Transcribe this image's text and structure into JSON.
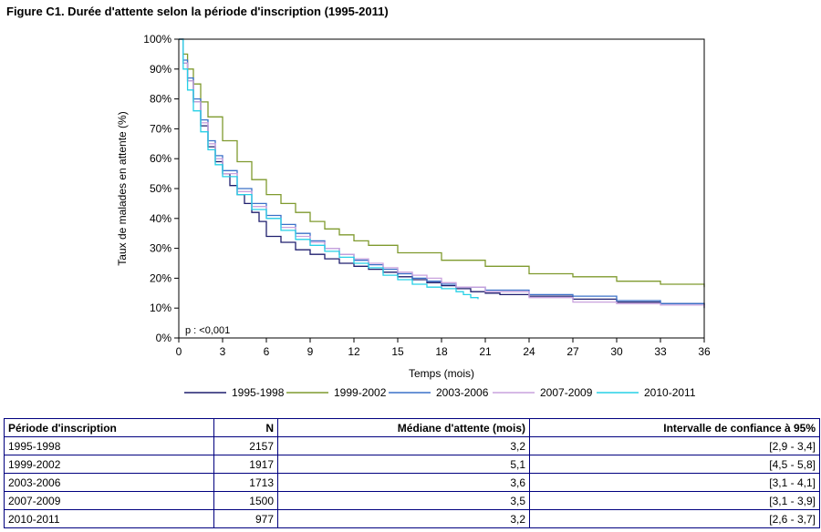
{
  "figure": {
    "title": "Figure C1. Durée d'attente selon la période d'inscription (1995-2011)"
  },
  "chart_data": {
    "type": "line",
    "xlabel": "Temps (mois)",
    "ylabel": "Taux de malades en attente (%)",
    "xlim": [
      0,
      36
    ],
    "ylim": [
      0,
      100
    ],
    "xticks": [
      "0",
      "3",
      "6",
      "9",
      "12",
      "15",
      "18",
      "21",
      "24",
      "27",
      "30",
      "33",
      "36"
    ],
    "yticks": [
      "0%",
      "10%",
      "20%",
      "30%",
      "40%",
      "50%",
      "60%",
      "70%",
      "80%",
      "90%",
      "100%"
    ],
    "annotation": "p : <0,001",
    "grid": false,
    "legend_position": "bottom",
    "series": [
      {
        "name": "1995-1998",
        "color": "#1f1f6e",
        "x": [
          0,
          0.3,
          0.6,
          1,
          1.5,
          2,
          2.5,
          3,
          3.5,
          4,
          4.5,
          5,
          5.5,
          6,
          7,
          8,
          9,
          10,
          11,
          12,
          13,
          14,
          15,
          16,
          17,
          18,
          19,
          20,
          21,
          22,
          24,
          27,
          30,
          33,
          36
        ],
        "y": [
          100,
          92,
          86,
          79,
          71,
          64,
          59,
          55,
          51,
          48,
          45,
          42,
          39,
          34,
          32,
          29.5,
          28,
          26.5,
          25,
          24,
          23,
          22,
          20.5,
          19.5,
          18.5,
          17.5,
          16.5,
          15.5,
          15,
          14.5,
          14,
          13,
          12,
          11.5,
          10
        ]
      },
      {
        "name": "1999-2002",
        "color": "#7f9a2e",
        "x": [
          0,
          0.3,
          0.6,
          1,
          1.5,
          2,
          3,
          4,
          5,
          6,
          7,
          8,
          9,
          10,
          11,
          12,
          13,
          15,
          18,
          21,
          24,
          27,
          30,
          33,
          36
        ],
        "y": [
          100,
          95,
          90,
          85,
          79,
          74,
          66,
          59,
          53,
          48,
          45,
          42,
          39,
          36.5,
          34.5,
          32.5,
          31,
          28.5,
          26,
          24,
          21.5,
          20.5,
          19,
          18,
          17
        ]
      },
      {
        "name": "2003-2006",
        "color": "#3a70c8",
        "x": [
          0,
          0.3,
          0.6,
          1,
          1.5,
          2,
          2.5,
          3,
          4,
          5,
          6,
          7,
          8,
          9,
          10,
          11,
          12,
          13,
          14,
          15,
          16,
          17,
          18,
          19,
          21,
          24,
          27,
          30,
          33,
          36
        ],
        "y": [
          100,
          93,
          87,
          80,
          73,
          66,
          61,
          56,
          50,
          45,
          41,
          38,
          35,
          32.5,
          30,
          28,
          26,
          24.5,
          23,
          21.5,
          20,
          19,
          18,
          17,
          16,
          14.5,
          14,
          12.5,
          11.5,
          11
        ]
      },
      {
        "name": "2007-2009",
        "color": "#c9a2dd",
        "x": [
          0,
          0.3,
          0.6,
          1,
          1.5,
          2,
          2.5,
          3,
          4,
          5,
          6,
          7,
          8,
          9,
          10,
          11,
          12,
          13,
          14,
          15,
          16,
          17,
          18,
          19,
          21,
          24,
          27,
          30,
          33,
          36
        ],
        "y": [
          100,
          92,
          86,
          79,
          72,
          65,
          60,
          55,
          49,
          44,
          40,
          37,
          34,
          32,
          30,
          28,
          26.5,
          25,
          23.5,
          22,
          21,
          20,
          18.5,
          17,
          15.5,
          13.5,
          12,
          11.5,
          11,
          10.5
        ]
      },
      {
        "name": "2010-2011",
        "color": "#26d0e6",
        "x": [
          0,
          0.3,
          0.6,
          1,
          1.5,
          2,
          2.5,
          3,
          4,
          5,
          6,
          7,
          8,
          9,
          10,
          11,
          12,
          13,
          14,
          15,
          16,
          17,
          18,
          19,
          19.5,
          20,
          20.5
        ],
        "y": [
          100,
          90,
          83,
          76,
          69,
          63,
          58,
          54,
          48,
          43,
          40,
          36,
          33,
          31,
          29,
          27,
          25,
          23.5,
          21,
          19.5,
          18,
          17,
          16.5,
          15.5,
          14.5,
          13.5,
          13
        ]
      }
    ]
  },
  "table": {
    "headers": [
      "Période d'inscription",
      "N",
      "Médiane d'attente (mois)",
      "Intervalle de confiance à 95%"
    ],
    "rows": [
      [
        "1995-1998",
        "2157",
        "3,2",
        "[2,9 - 3,4]"
      ],
      [
        "1999-2002",
        "1917",
        "5,1",
        "[4,5 - 5,8]"
      ],
      [
        "2003-2006",
        "1713",
        "3,6",
        "[3,1 - 4,1]"
      ],
      [
        "2007-2009",
        "1500",
        "3,5",
        "[3,1 - 3,9]"
      ],
      [
        "2010-2011",
        "977",
        "3,2",
        "[2,6 - 3,7]"
      ]
    ]
  }
}
